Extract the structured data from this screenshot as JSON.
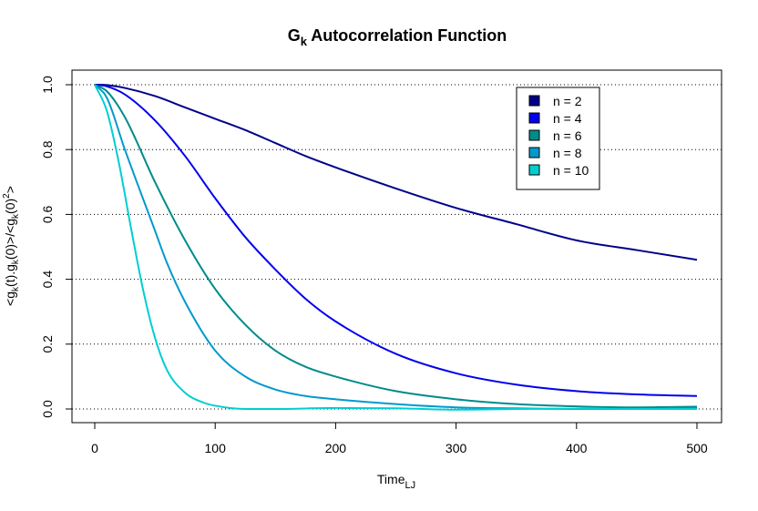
{
  "chart_data": {
    "type": "line",
    "title_main": "G",
    "title_sub": "k",
    "title_rest": " Autocorrelation Function",
    "xlabel_main": "Time",
    "xlabel_sub": "LJ",
    "ylabel_parts": [
      {
        "t": "<g",
        "sub": false
      },
      {
        "t": "k",
        "sub": true
      },
      {
        "t": "(t).g",
        "sub": false
      },
      {
        "t": "k",
        "sub": true
      },
      {
        "t": "(0)>/<g",
        "sub": false
      },
      {
        "t": "k",
        "sub": true
      },
      {
        "t": "(0)",
        "sub": false
      },
      {
        "t": "2",
        "sup": true
      },
      {
        "t": ">",
        "sub": false
      }
    ],
    "xlim": [
      0,
      500
    ],
    "ylim": [
      0,
      1
    ],
    "xticks": [
      0,
      100,
      200,
      300,
      400,
      500
    ],
    "yticks": [
      0.0,
      0.2,
      0.4,
      0.6,
      0.8,
      1.0
    ],
    "xtick_labels": [
      "0",
      "100",
      "200",
      "300",
      "400",
      "500"
    ],
    "ytick_labels": [
      "0.0",
      "0.2",
      "0.4",
      "0.6",
      "0.8",
      "1.0"
    ],
    "grid": "horizontal dotted",
    "legend_position": "top-right",
    "series": [
      {
        "name": "n = 2",
        "color": "#00008b",
        "x": [
          0,
          10,
          25,
          50,
          75,
          100,
          125,
          150,
          175,
          200,
          250,
          300,
          350,
          400,
          450,
          500
        ],
        "y": [
          1.0,
          0.999,
          0.99,
          0.965,
          0.93,
          0.895,
          0.86,
          0.82,
          0.78,
          0.745,
          0.68,
          0.62,
          0.57,
          0.52,
          0.49,
          0.46
        ]
      },
      {
        "name": "n = 4",
        "color": "#0000ee",
        "x": [
          0,
          10,
          25,
          50,
          75,
          100,
          125,
          150,
          175,
          200,
          250,
          300,
          350,
          400,
          450,
          500
        ],
        "y": [
          1.0,
          0.995,
          0.97,
          0.89,
          0.78,
          0.65,
          0.53,
          0.43,
          0.34,
          0.27,
          0.17,
          0.11,
          0.075,
          0.055,
          0.045,
          0.04
        ]
      },
      {
        "name": "n = 6",
        "color": "#008b8b",
        "x": [
          0,
          10,
          25,
          50,
          75,
          100,
          125,
          150,
          175,
          200,
          250,
          300,
          350,
          400,
          450,
          500
        ],
        "y": [
          1.0,
          0.98,
          0.9,
          0.7,
          0.52,
          0.37,
          0.26,
          0.18,
          0.13,
          0.1,
          0.055,
          0.03,
          0.015,
          0.008,
          0.005,
          0.007
        ]
      },
      {
        "name": "n = 8",
        "color": "#009acd",
        "x": [
          0,
          10,
          25,
          50,
          60,
          75,
          100,
          125,
          150,
          175,
          200,
          250,
          300,
          350,
          400,
          450,
          500
        ],
        "y": [
          1.0,
          0.96,
          0.8,
          0.55,
          0.45,
          0.33,
          0.18,
          0.1,
          0.06,
          0.04,
          0.03,
          0.015,
          0.005,
          0.002,
          0.0,
          0.0,
          0.002
        ]
      },
      {
        "name": "n = 10",
        "color": "#00ced1",
        "x": [
          0,
          10,
          20,
          30,
          40,
          50,
          60,
          75,
          90,
          100,
          125,
          150,
          200,
          250,
          300,
          350,
          400,
          450,
          500
        ],
        "y": [
          1.0,
          0.92,
          0.76,
          0.56,
          0.37,
          0.22,
          0.12,
          0.05,
          0.02,
          0.01,
          0.0,
          0.0,
          0.003,
          0.002,
          -0.002,
          0.0,
          0.001,
          0.0,
          0.0
        ]
      }
    ]
  }
}
